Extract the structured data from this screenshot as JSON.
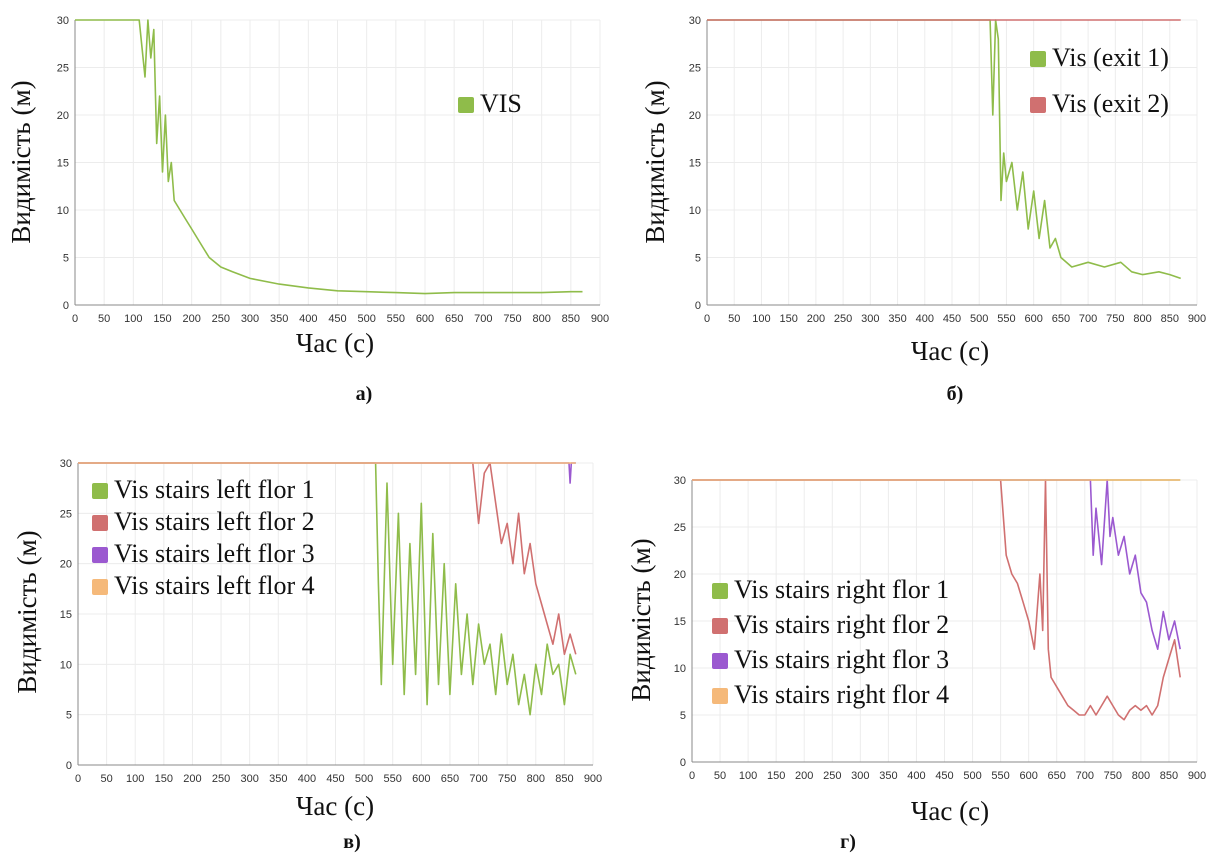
{
  "chart_data": [
    {
      "type": "line",
      "panel_label": "а)",
      "xlabel": "Час (с)",
      "ylabel": "Видимість (м)",
      "xlim": [
        0,
        900
      ],
      "ylim": [
        0,
        30
      ],
      "xticks": [
        "0",
        "50",
        "100",
        "150",
        "200",
        "250",
        "300",
        "350",
        "400",
        "450",
        "500",
        "550",
        "600",
        "650",
        "700",
        "750",
        "800",
        "850",
        "900"
      ],
      "yticks": [
        "0",
        "5",
        "10",
        "15",
        "20",
        "25",
        "30"
      ],
      "grid": true,
      "legend_position": "upper-right",
      "series": [
        {
          "name": "VIS",
          "color": "#8fbc4a",
          "x": [
            0,
            110,
            120,
            125,
            130,
            135,
            140,
            145,
            150,
            155,
            160,
            165,
            170,
            180,
            190,
            200,
            210,
            220,
            230,
            250,
            270,
            300,
            350,
            400,
            450,
            500,
            550,
            600,
            650,
            700,
            750,
            800,
            850,
            870
          ],
          "y": [
            30,
            30,
            24,
            30,
            26,
            29,
            17,
            22,
            14,
            20,
            13,
            15,
            11,
            10,
            9,
            8,
            7,
            6,
            5,
            4,
            3.5,
            2.8,
            2.2,
            1.8,
            1.5,
            1.4,
            1.3,
            1.2,
            1.3,
            1.3,
            1.3,
            1.3,
            1.4,
            1.4
          ]
        }
      ]
    },
    {
      "type": "line",
      "panel_label": "б)",
      "xlabel": "Час (с)",
      "ylabel": "Видимість (м)",
      "xlim": [
        0,
        900
      ],
      "ylim": [
        0,
        30
      ],
      "xticks": [
        "0",
        "50",
        "100",
        "150",
        "200",
        "250",
        "300",
        "350",
        "400",
        "450",
        "500",
        "550",
        "600",
        "650",
        "700",
        "750",
        "800",
        "850",
        "900"
      ],
      "yticks": [
        "0",
        "5",
        "10",
        "15",
        "20",
        "25",
        "30"
      ],
      "grid": true,
      "legend_position": "upper-right",
      "series": [
        {
          "name": "Vis (exit 1)",
          "color": "#8fbc4a",
          "x": [
            0,
            520,
            525,
            530,
            535,
            540,
            545,
            550,
            560,
            570,
            580,
            590,
            600,
            610,
            620,
            630,
            640,
            650,
            670,
            700,
            730,
            760,
            780,
            800,
            830,
            850,
            870
          ],
          "y": [
            30,
            30,
            20,
            30,
            28,
            11,
            16,
            13,
            15,
            10,
            14,
            8,
            12,
            7,
            11,
            6,
            7,
            5,
            4,
            4.5,
            4,
            4.5,
            3.5,
            3.2,
            3.5,
            3.2,
            2.8
          ]
        },
        {
          "name": "Vis (exit 2)",
          "color": "#d07070",
          "x": [
            0,
            870
          ],
          "y": [
            30,
            30
          ]
        }
      ]
    },
    {
      "type": "line",
      "panel_label": "в)",
      "xlabel": "Час (с)",
      "ylabel": "Видимість (м)",
      "xlim": [
        0,
        900
      ],
      "ylim": [
        0,
        30
      ],
      "xticks": [
        "0",
        "50",
        "100",
        "150",
        "200",
        "250",
        "300",
        "350",
        "400",
        "450",
        "500",
        "550",
        "600",
        "650",
        "700",
        "750",
        "800",
        "850",
        "900"
      ],
      "yticks": [
        "0",
        "5",
        "10",
        "15",
        "20",
        "25",
        "30"
      ],
      "grid": true,
      "legend_position": "upper-left",
      "series": [
        {
          "name": "Vis stairs left flor 1",
          "color": "#8fbc4a",
          "x": [
            0,
            520,
            525,
            530,
            540,
            550,
            560,
            570,
            580,
            590,
            600,
            610,
            620,
            630,
            640,
            650,
            660,
            670,
            680,
            690,
            700,
            710,
            720,
            730,
            740,
            750,
            760,
            770,
            780,
            790,
            800,
            810,
            820,
            830,
            840,
            850,
            860,
            870
          ],
          "y": [
            30,
            30,
            18,
            8,
            28,
            10,
            25,
            7,
            22,
            9,
            26,
            6,
            23,
            8,
            20,
            7,
            18,
            9,
            15,
            8,
            14,
            10,
            12,
            7,
            13,
            8,
            11,
            6,
            9,
            5,
            10,
            7,
            12,
            9,
            10,
            6,
            11,
            9
          ]
        },
        {
          "name": "Vis stairs left flor 2",
          "color": "#d07070",
          "x": [
            0,
            690,
            700,
            710,
            720,
            730,
            740,
            750,
            760,
            770,
            780,
            790,
            800,
            810,
            820,
            830,
            840,
            850,
            860,
            870
          ],
          "y": [
            30,
            30,
            24,
            29,
            30,
            26,
            22,
            24,
            20,
            25,
            19,
            22,
            18,
            16,
            14,
            12,
            15,
            11,
            13,
            11
          ]
        },
        {
          "name": "Vis stairs left flor 3",
          "color": "#9b59d0",
          "x": [
            0,
            858,
            860,
            862,
            870
          ],
          "y": [
            30,
            30,
            28,
            30,
            30
          ]
        },
        {
          "name": "Vis stairs left flor 4",
          "color": "#f5b97a",
          "x": [
            0,
            870
          ],
          "y": [
            30,
            30
          ]
        }
      ]
    },
    {
      "type": "line",
      "panel_label": "г)",
      "xlabel": "Час (с)",
      "ylabel": "Видимість (м)",
      "xlim": [
        0,
        900
      ],
      "ylim": [
        0,
        30
      ],
      "xticks": [
        "0",
        "50",
        "100",
        "150",
        "200",
        "250",
        "300",
        "350",
        "400",
        "450",
        "500",
        "550",
        "600",
        "650",
        "700",
        "750",
        "800",
        "850",
        "900"
      ],
      "yticks": [
        "0",
        "5",
        "10",
        "15",
        "20",
        "25",
        "30"
      ],
      "grid": true,
      "legend_position": "lower-left",
      "series": [
        {
          "name": "Vis stairs right flor 1",
          "color": "#8fbc4a",
          "x": [
            0,
            870
          ],
          "y": [
            30,
            30
          ]
        },
        {
          "name": "Vis stairs right flor 2",
          "color": "#d07070",
          "x": [
            0,
            550,
            560,
            570,
            580,
            590,
            600,
            610,
            620,
            625,
            630,
            635,
            640,
            650,
            660,
            670,
            680,
            690,
            700,
            710,
            720,
            730,
            740,
            750,
            760,
            770,
            780,
            790,
            800,
            810,
            820,
            830,
            840,
            850,
            860,
            870
          ],
          "y": [
            30,
            30,
            22,
            20,
            19,
            17,
            15,
            12,
            20,
            14,
            30,
            12,
            9,
            8,
            7,
            6,
            5.5,
            5,
            5,
            6,
            5,
            6,
            7,
            6,
            5,
            4.5,
            5.5,
            6,
            5.5,
            6,
            5,
            6,
            9,
            11,
            13,
            9
          ]
        },
        {
          "name": "Vis stairs right flor 3",
          "color": "#9b59d0",
          "x": [
            0,
            710,
            715,
            720,
            730,
            740,
            745,
            750,
            760,
            770,
            780,
            790,
            800,
            810,
            820,
            830,
            840,
            850,
            860,
            870
          ],
          "y": [
            30,
            30,
            22,
            27,
            21,
            30,
            24,
            26,
            22,
            24,
            20,
            22,
            18,
            17,
            14,
            12,
            16,
            13,
            15,
            12
          ]
        },
        {
          "name": "Vis stairs right flor 4",
          "color": "#f5b97a",
          "x": [
            0,
            870
          ],
          "y": [
            30,
            30
          ]
        }
      ]
    }
  ]
}
